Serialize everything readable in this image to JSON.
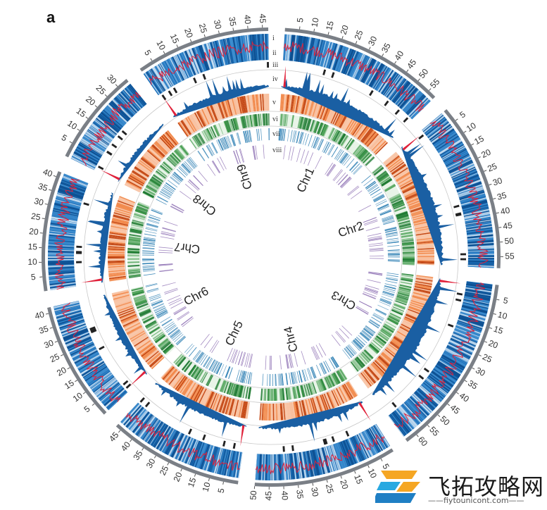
{
  "panel_label": "a",
  "track_labels": [
    "i",
    "ii",
    "iii",
    "iv",
    "v",
    "vi",
    "vii",
    "viii"
  ],
  "colors": {
    "ideogram": "#7a7f86",
    "density_blue": "#1d6fb8",
    "density_light": "#cfe4f5",
    "red_line": "#e0213a",
    "peak_blue": "#1a5fa3",
    "orange": "#e35a12",
    "green": "#3f9a4a",
    "steel_blue": "#2d7fb3",
    "purple": "#7b58a6",
    "ring": "#c8c8c8"
  },
  "chart_data": {
    "type": "circos",
    "chromosomes": [
      {
        "name": "Chr1",
        "length": 58,
        "ticks": [
          5,
          10,
          15,
          20,
          25,
          30,
          35,
          40,
          45,
          50,
          55
        ]
      },
      {
        "name": "Chr2",
        "length": 59,
        "ticks": [
          5,
          10,
          15,
          20,
          25,
          30,
          35,
          40,
          45,
          50,
          55
        ]
      },
      {
        "name": "Chr3",
        "length": 64,
        "ticks": [
          5,
          10,
          15,
          20,
          25,
          30,
          35,
          40,
          45,
          50,
          55,
          60
        ]
      },
      {
        "name": "Chr4",
        "length": 50,
        "ticks": [
          5,
          10,
          15,
          20,
          25,
          30,
          35,
          40,
          45,
          50
        ]
      },
      {
        "name": "Chr5",
        "length": 47,
        "ticks": [
          5,
          10,
          15,
          20,
          25,
          30,
          35,
          40,
          45
        ]
      },
      {
        "name": "Chr6",
        "length": 42,
        "ticks": [
          5,
          10,
          15,
          20,
          25,
          30,
          35,
          40
        ]
      },
      {
        "name": "Chr7",
        "length": 42,
        "ticks": [
          5,
          10,
          15,
          20,
          25,
          30,
          35,
          40
        ]
      },
      {
        "name": "Chr8",
        "length": 34,
        "ticks": [
          5,
          10,
          15,
          20,
          25,
          30
        ]
      },
      {
        "name": "Chr9",
        "length": 47,
        "ticks": [
          5,
          10,
          15,
          20,
          25,
          30,
          35,
          40,
          45
        ]
      }
    ]
  },
  "watermark": {
    "title": "飞拓攻略网",
    "url": "——fiytounicont.com——"
  }
}
